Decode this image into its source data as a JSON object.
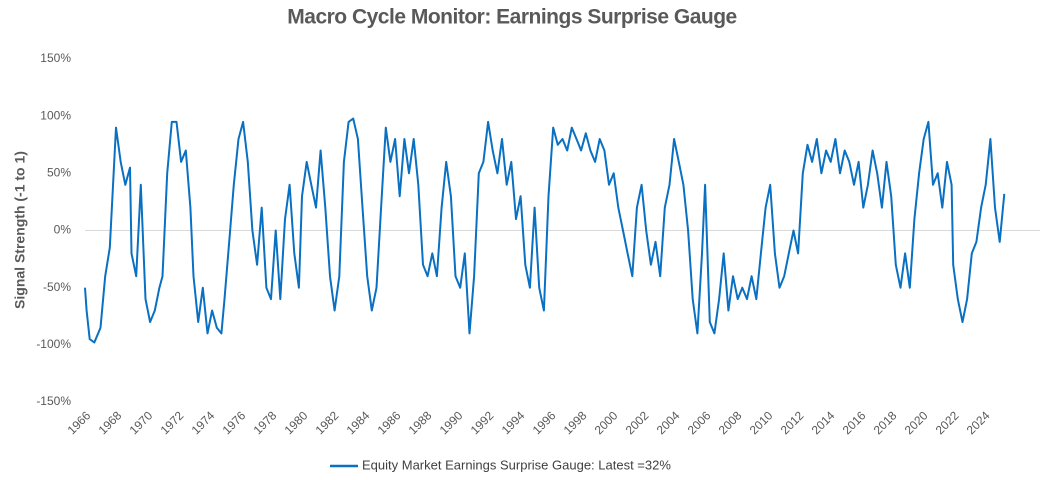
{
  "chart_data": {
    "type": "line",
    "title": "Macro Cycle Monitor: Earnings Surprise Gauge",
    "y_label": "Signal Strength (-1 to 1)",
    "x": [
      1966.0,
      1966.1,
      1966.3,
      1966.6,
      1967.0,
      1967.3,
      1967.6,
      1968.0,
      1968.3,
      1968.6,
      1968.9,
      1969.0,
      1969.3,
      1969.6,
      1969.9,
      1970.2,
      1970.5,
      1970.8,
      1971.0,
      1971.3,
      1971.6,
      1971.9,
      1972.2,
      1972.5,
      1972.8,
      1973.0,
      1973.3,
      1973.6,
      1973.9,
      1974.2,
      1974.5,
      1974.8,
      1975.0,
      1975.3,
      1975.6,
      1975.9,
      1976.2,
      1976.5,
      1976.8,
      1977.1,
      1977.4,
      1977.7,
      1978.0,
      1978.3,
      1978.6,
      1978.9,
      1979.2,
      1979.5,
      1979.8,
      1980.0,
      1980.3,
      1980.6,
      1980.9,
      1981.2,
      1981.5,
      1981.8,
      1982.1,
      1982.4,
      1982.7,
      1983.0,
      1983.3,
      1983.6,
      1983.9,
      1984.2,
      1984.5,
      1984.8,
      1985.1,
      1985.4,
      1985.7,
      1986.0,
      1986.3,
      1986.6,
      1986.9,
      1987.2,
      1987.5,
      1987.8,
      1988.1,
      1988.4,
      1988.7,
      1989.0,
      1989.3,
      1989.6,
      1989.9,
      1990.2,
      1990.5,
      1990.8,
      1991.1,
      1991.4,
      1991.7,
      1992.0,
      1992.3,
      1992.6,
      1992.9,
      1993.2,
      1993.5,
      1993.8,
      1994.1,
      1994.4,
      1994.7,
      1995.0,
      1995.3,
      1995.6,
      1995.9,
      1996.2,
      1996.5,
      1996.8,
      1997.1,
      1997.4,
      1997.7,
      1998.0,
      1998.3,
      1998.6,
      1998.9,
      1999.2,
      1999.5,
      1999.8,
      2000.1,
      2000.4,
      2000.7,
      2001.0,
      2001.3,
      2001.6,
      2001.9,
      2002.2,
      2002.5,
      2002.8,
      2003.1,
      2003.4,
      2003.7,
      2004.0,
      2004.3,
      2004.6,
      2004.9,
      2005.2,
      2005.5,
      2005.8,
      2006.0,
      2006.3,
      2006.6,
      2006.9,
      2007.2,
      2007.5,
      2007.8,
      2008.1,
      2008.4,
      2008.7,
      2009.0,
      2009.3,
      2009.6,
      2009.9,
      2010.2,
      2010.5,
      2010.8,
      2011.1,
      2011.4,
      2011.7,
      2012.0,
      2012.3,
      2012.6,
      2012.9,
      2013.2,
      2013.5,
      2013.8,
      2014.1,
      2014.4,
      2014.7,
      2015.0,
      2015.3,
      2015.6,
      2015.9,
      2016.2,
      2016.5,
      2016.8,
      2017.1,
      2017.4,
      2017.7,
      2018.0,
      2018.3,
      2018.6,
      2018.9,
      2019.2,
      2019.5,
      2019.8,
      2020.1,
      2020.4,
      2020.7,
      2021.0,
      2021.3,
      2021.6,
      2021.9,
      2022.0,
      2022.3,
      2022.6,
      2022.9,
      2023.2,
      2023.5,
      2023.8,
      2024.1,
      2024.4,
      2024.7,
      2025.0,
      2025.3
    ],
    "series": [
      {
        "name": "Equity Market Earnings Surprise Gauge: Latest =32%",
        "color": "#0a70c2",
        "values": [
          -50,
          -70,
          -95,
          -98,
          -85,
          -40,
          -15,
          90,
          60,
          40,
          55,
          -20,
          -40,
          40,
          -60,
          -80,
          -70,
          -50,
          -40,
          50,
          95,
          95,
          60,
          70,
          20,
          -40,
          -80,
          -50,
          -90,
          -70,
          -85,
          -90,
          -60,
          -10,
          40,
          80,
          95,
          60,
          0,
          -30,
          20,
          -50,
          -60,
          0,
          -60,
          10,
          40,
          -20,
          -50,
          30,
          60,
          40,
          20,
          70,
          20,
          -40,
          -70,
          -40,
          60,
          95,
          98,
          80,
          20,
          -40,
          -70,
          -50,
          20,
          90,
          60,
          80,
          30,
          80,
          50,
          80,
          40,
          -30,
          -40,
          -20,
          -40,
          20,
          60,
          30,
          -40,
          -50,
          -20,
          -90,
          -40,
          50,
          60,
          95,
          70,
          50,
          80,
          40,
          60,
          10,
          30,
          -30,
          -50,
          20,
          -50,
          -70,
          30,
          90,
          75,
          80,
          70,
          90,
          80,
          70,
          85,
          70,
          60,
          80,
          70,
          40,
          50,
          20,
          0,
          -20,
          -40,
          20,
          40,
          0,
          -30,
          -10,
          -40,
          20,
          40,
          80,
          60,
          40,
          0,
          -60,
          -90,
          -20,
          40,
          -80,
          -90,
          -60,
          -20,
          -70,
          -40,
          -60,
          -50,
          -60,
          -40,
          -60,
          -20,
          20,
          40,
          -20,
          -50,
          -40,
          -20,
          0,
          -20,
          50,
          75,
          60,
          80,
          50,
          70,
          60,
          80,
          50,
          70,
          60,
          40,
          60,
          20,
          40,
          70,
          50,
          20,
          60,
          30,
          -30,
          -50,
          -20,
          -50,
          10,
          50,
          80,
          95,
          40,
          50,
          20,
          60,
          40,
          -30,
          -60,
          -80,
          -60,
          -20,
          -10,
          20,
          40,
          80,
          20,
          -10,
          32
        ]
      }
    ],
    "xlim": [
      1966,
      2027.6
    ],
    "xticks": [
      1966,
      1968,
      1970,
      1972,
      1974,
      1976,
      1978,
      1980,
      1982,
      1984,
      1986,
      1988,
      1990,
      1992,
      1994,
      1996,
      1998,
      2000,
      2002,
      2004,
      2006,
      2008,
      2010,
      2012,
      2014,
      2016,
      2018,
      2020,
      2022,
      2024
    ],
    "ylim": [
      -150,
      150
    ],
    "yticks": [
      {
        "value": -150,
        "label": "-150%"
      },
      {
        "value": -100,
        "label": "-100%"
      },
      {
        "value": -50,
        "label": "-50%"
      },
      {
        "value": 0,
        "label": "0%"
      },
      {
        "value": 50,
        "label": "50%"
      },
      {
        "value": 100,
        "label": "100%"
      },
      {
        "value": 150,
        "label": "150%"
      }
    ],
    "zero_line": true,
    "legend": "bottom"
  }
}
